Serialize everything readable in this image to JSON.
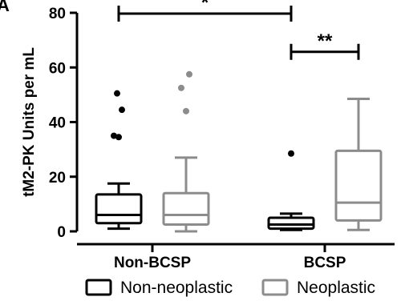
{
  "panel_letter": "A",
  "chart_data": {
    "type": "box",
    "title": "",
    "xlabel": "",
    "ylabel": "tM2-PK Units per mL",
    "ylim": [
      0,
      80
    ],
    "yticks": [
      0,
      20,
      40,
      60,
      80
    ],
    "grid": false,
    "legend_position": "bottom",
    "colors": {
      "Non-neoplastic": "#000000",
      "Neoplastic": "#8c8c8c"
    },
    "categories": [
      "Non-BCSP",
      "BCSP"
    ],
    "series": [
      {
        "name": "Non-neoplastic",
        "boxes": [
          {
            "whisker_low": 1,
            "q1": 3,
            "median": 6,
            "q3": 13.5,
            "whisker_high": 17.5,
            "outliers": [
              34.5,
              35,
              44.5,
              50.5
            ]
          },
          {
            "whisker_low": 0.5,
            "q1": 1,
            "median": 2.5,
            "q3": 5,
            "whisker_high": 6.5,
            "outliers": [
              28.5
            ]
          }
        ]
      },
      {
        "name": "Neoplastic",
        "boxes": [
          {
            "whisker_low": 0,
            "q1": 2.5,
            "median": 6,
            "q3": 14,
            "whisker_high": 27,
            "outliers": [
              44,
              52.5,
              57.5
            ]
          },
          {
            "whisker_low": 0.5,
            "q1": 4,
            "median": 10.5,
            "q3": 29.5,
            "whisker_high": 48.5,
            "outliers": []
          }
        ]
      }
    ],
    "significance": [
      {
        "label": "*",
        "from": "Non-BCSP",
        "to": "BCSP",
        "y": 80
      },
      {
        "label": "**",
        "from": "BCSP Non-neoplastic",
        "to": "BCSP Neoplastic",
        "y": 66
      }
    ]
  }
}
